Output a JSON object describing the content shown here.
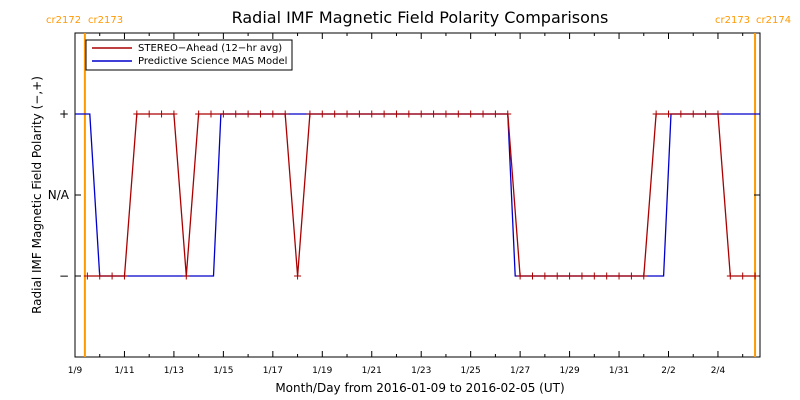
{
  "chart_data": {
    "type": "line",
    "title": "Radial IMF Magnetic Field Polarity Comparisons",
    "xlabel": "Month/Day from 2016-01-09 to 2016-02-05 (UT)",
    "ylabel": "Radial IMF Magnetic Field Polarity (−,+)",
    "x_unit": "day of 2016",
    "xlim": [
      9.0,
      36.7
    ],
    "x_ticks": [
      {
        "value": 9,
        "label": "1/9"
      },
      {
        "value": 11,
        "label": "1/11"
      },
      {
        "value": 13,
        "label": "1/13"
      },
      {
        "value": 15,
        "label": "1/15"
      },
      {
        "value": 17,
        "label": "1/17"
      },
      {
        "value": 19,
        "label": "1/19"
      },
      {
        "value": 21,
        "label": "1/21"
      },
      {
        "value": 23,
        "label": "1/23"
      },
      {
        "value": 25,
        "label": "1/25"
      },
      {
        "value": 27,
        "label": "1/27"
      },
      {
        "value": 29,
        "label": "1/29"
      },
      {
        "value": 31,
        "label": "1/31"
      },
      {
        "value": 33,
        "label": "2/2"
      },
      {
        "value": 35,
        "label": "2/4"
      }
    ],
    "ylim": [
      -2,
      2
    ],
    "y_ticks": [
      {
        "value": 1,
        "label": "+"
      },
      {
        "value": 0,
        "label": "N/A"
      },
      {
        "value": -1,
        "label": "−"
      }
    ],
    "carrington_markers": [
      {
        "x": 9.4,
        "left_label": "cr2172",
        "right_label": "cr2173",
        "color": "#ff9900"
      },
      {
        "x": 36.5,
        "left_label": "cr2173",
        "right_label": "cr2174",
        "color": "#ff9900"
      }
    ],
    "legend_position": "top-left",
    "series": [
      {
        "name": "STEREO−Ahead (12−hr avg)",
        "color": "#aa0000",
        "marker": "plus",
        "x": [
          9.5,
          10.0,
          10.5,
          11.0,
          11.5,
          12.0,
          12.5,
          13.0,
          13.5,
          14.0,
          14.5,
          15.0,
          15.5,
          16.0,
          16.5,
          17.0,
          17.5,
          18.0,
          18.5,
          19.0,
          19.5,
          20.0,
          20.5,
          21.0,
          21.5,
          22.0,
          22.5,
          23.0,
          23.5,
          24.0,
          24.5,
          25.0,
          25.5,
          26.0,
          26.5,
          27.0,
          27.5,
          28.0,
          28.5,
          29.0,
          29.5,
          30.0,
          30.5,
          31.0,
          31.5,
          32.0,
          32.5,
          33.0,
          33.5,
          34.0,
          34.5,
          35.0,
          35.5,
          36.0,
          36.5
        ],
        "y": [
          -1,
          -1,
          -1,
          -1,
          1,
          1,
          1,
          1,
          -1,
          1,
          1,
          1,
          1,
          1,
          1,
          1,
          1,
          -1,
          1,
          1,
          1,
          1,
          1,
          1,
          1,
          1,
          1,
          1,
          1,
          1,
          1,
          1,
          1,
          1,
          1,
          -1,
          -1,
          -1,
          -1,
          -1,
          -1,
          -1,
          -1,
          -1,
          -1,
          -1,
          1,
          1,
          1,
          1,
          1,
          1,
          -1,
          -1,
          -1
        ]
      },
      {
        "name": "Predictive Science MAS Model",
        "color": "#0000cc",
        "marker": "none",
        "x": [
          9.0,
          9.6,
          10.0,
          14.6,
          14.9,
          26.5,
          26.8,
          32.8,
          33.1,
          36.7
        ],
        "y": [
          1,
          1,
          -1,
          -1,
          1,
          1,
          -1,
          -1,
          1,
          1
        ]
      }
    ]
  }
}
